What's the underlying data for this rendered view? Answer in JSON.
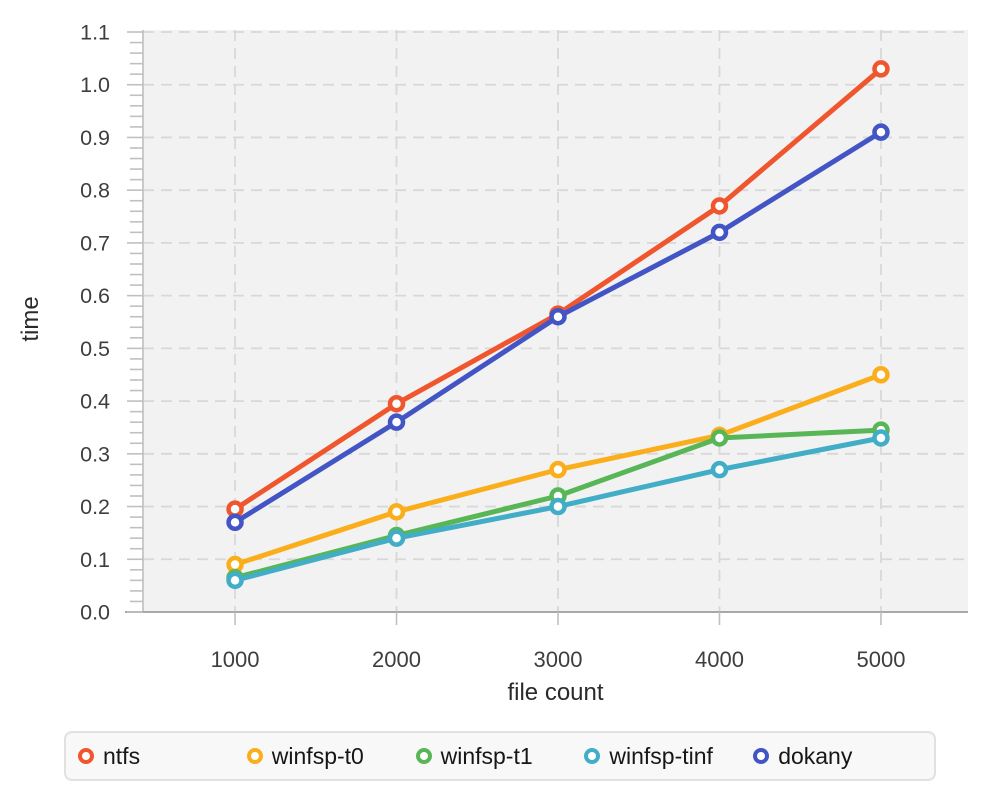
{
  "chart_data": {
    "type": "line",
    "x": [
      1000,
      2000,
      3000,
      4000,
      5000
    ],
    "x_tick_labels": [
      "1000",
      "2000",
      "3000",
      "4000",
      "5000"
    ],
    "y_ticks": [
      0.0,
      0.1,
      0.2,
      0.3,
      0.4,
      0.5,
      0.6,
      0.7,
      0.8,
      0.9,
      1.0,
      1.1
    ],
    "y_tick_labels": [
      "0.0",
      "0.1",
      "0.2",
      "0.3",
      "0.4",
      "0.5",
      "0.6",
      "0.7",
      "0.8",
      "0.9",
      "1.0",
      "1.1"
    ],
    "xlabel": "file count",
    "ylabel": "time",
    "xlim": [
      430,
      5539
    ],
    "ylim": [
      0,
      1.1
    ],
    "grid": true,
    "legend_position": "bottom",
    "series": [
      {
        "name": "ntfs",
        "color": "#F0562E",
        "values": [
          0.195,
          0.395,
          0.565,
          0.77,
          1.03
        ]
      },
      {
        "name": "winfsp-t0",
        "color": "#FBAE1C",
        "values": [
          0.09,
          0.19,
          0.27,
          0.335,
          0.45
        ]
      },
      {
        "name": "winfsp-t1",
        "color": "#58B656",
        "values": [
          0.065,
          0.145,
          0.22,
          0.33,
          0.345
        ]
      },
      {
        "name": "winfsp-tinf",
        "color": "#41ADC6",
        "values": [
          0.06,
          0.14,
          0.2,
          0.27,
          0.33
        ]
      },
      {
        "name": "dokany",
        "color": "#4355C5",
        "values": [
          0.17,
          0.36,
          0.56,
          0.72,
          0.91
        ]
      }
    ],
    "styles": {
      "plot_bg": "#F2F2F2",
      "grid_color": "#D8D8D8",
      "y_axis_line_color": "#C4C4C4",
      "x_axis_line_color": "#A8A8A8",
      "tick_color": "#C0C0C0",
      "tick_label_color": "#3E3E3E",
      "axis_title_color": "#2A2A2A",
      "marker_fill": "#FFFFFF",
      "legend_bg": "#F8F8F8",
      "legend_border": "#E1E1E1",
      "legend_text_color": "#161616"
    }
  }
}
